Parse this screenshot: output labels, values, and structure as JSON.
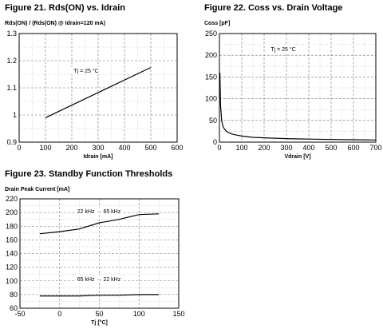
{
  "chart_data": [
    {
      "type": "line",
      "title": "Figure 21. Rds(ON) vs. Idrain",
      "ylabel": "Rds(ON) / (Rds(ON) @ Idrain=120 mA)",
      "xlabel": "Idrain [mA]",
      "xlim": [
        0,
        600
      ],
      "ylim": [
        0.9,
        1.3
      ],
      "xticks": [
        "0",
        "100",
        "200",
        "300",
        "400",
        "500",
        "600"
      ],
      "yticks": [
        "0.9",
        "1",
        "1.1",
        "1.2",
        "1.3"
      ],
      "grid": true,
      "annotation": "Tj = 25 °C",
      "series": [
        {
          "x": [
            100,
            500
          ],
          "y": [
            0.99,
            1.175
          ]
        }
      ]
    },
    {
      "type": "line",
      "title": "Figure 22. Coss vs. Drain Voltage",
      "ylabel": "Coss [pF]",
      "xlabel": "Vdrain [V]",
      "xlim": [
        0,
        700
      ],
      "ylim": [
        0,
        250
      ],
      "xticks": [
        "0",
        "100",
        "200",
        "300",
        "400",
        "500",
        "600",
        "700"
      ],
      "yticks": [
        "0",
        "50",
        "100",
        "150",
        "200",
        "250"
      ],
      "grid": true,
      "annotation": "Tj = 25 °C",
      "series": [
        {
          "x": [
            2,
            5,
            10,
            15,
            20,
            30,
            40,
            60,
            80,
            100,
            150,
            200,
            300,
            400,
            500,
            600,
            700
          ],
          "y": [
            160,
            85,
            50,
            38,
            32,
            26,
            22,
            18,
            16,
            14,
            11,
            10,
            8,
            7,
            6,
            5.5,
            5
          ]
        }
      ]
    },
    {
      "type": "line",
      "title": "Figure 23. Standby Function Thresholds",
      "ylabel": "Drain Peak Current [mA]",
      "xlabel": "Tj [°C]",
      "xlim": [
        -50,
        150
      ],
      "ylim": [
        60,
        220
      ],
      "xticks": [
        "-50",
        "0",
        "50",
        "100",
        "150"
      ],
      "yticks": [
        "60",
        "80",
        "100",
        "120",
        "140",
        "160",
        "180",
        "200",
        "220"
      ],
      "grid": true,
      "annotations": [
        "22 kHz → 65 kHz",
        "65 kHz → 22 kHz"
      ],
      "series": [
        {
          "x": [
            -25,
            0,
            25,
            50,
            75,
            100,
            125
          ],
          "y": [
            169,
            172,
            176,
            185,
            190,
            197,
            198
          ]
        },
        {
          "x": [
            -25,
            0,
            25,
            50,
            75,
            100,
            125
          ],
          "y": [
            78,
            78,
            78,
            79,
            79,
            80,
            80
          ]
        }
      ]
    }
  ]
}
